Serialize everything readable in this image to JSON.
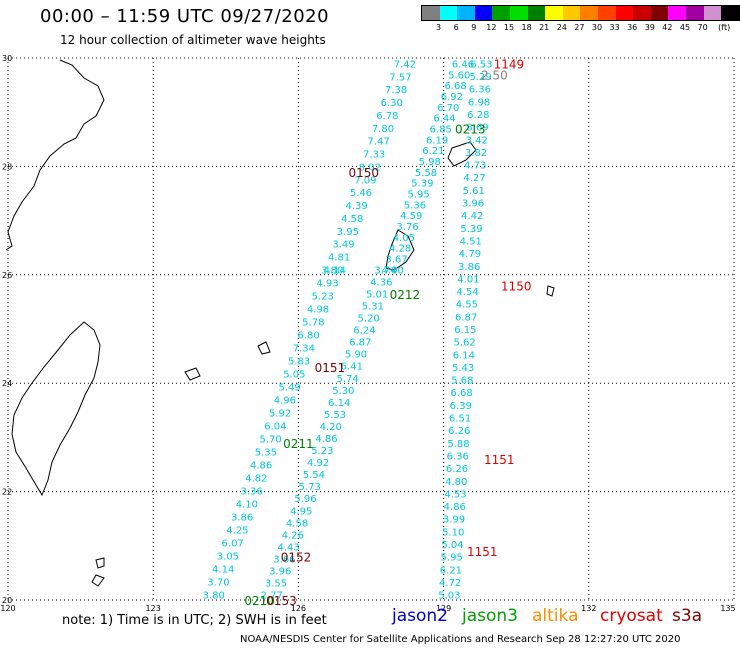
{
  "title": "00:00 – 11:59 UTC 09/27/2020",
  "subtitle": "12 hour collection of altimeter wave heights",
  "color_scale": {
    "colors": [
      "#808080",
      "#00ffff",
      "#00b4ff",
      "#0000ff",
      "#00a000",
      "#00e000",
      "#008000",
      "#ffff00",
      "#ffc800",
      "#ff8000",
      "#ff4000",
      "#ff0000",
      "#c80000",
      "#800000",
      "#ff00ff",
      "#a000a0",
      "#d090d0",
      "#000000"
    ],
    "labels": [
      "3",
      "6",
      "9",
      "12",
      "15",
      "18",
      "21",
      "24",
      "27",
      "30",
      "33",
      "36",
      "39",
      "42",
      "45",
      "70",
      "(ft)"
    ]
  },
  "chart_data": {
    "type": "scatter",
    "xlim": [
      120,
      135
    ],
    "ylim": [
      20,
      30
    ],
    "x_ticks": [
      "120",
      "123",
      "126",
      "129",
      "132",
      "135"
    ],
    "y_ticks": [
      "20",
      "22",
      "24",
      "26",
      "28",
      "30"
    ],
    "grid": true,
    "tracks": [
      {
        "x0": 129.78,
        "y0": 29.9,
        "x1": 129.12,
        "y1": 20.1,
        "values": [
          "6.53",
          "5.29",
          "6.36",
          "6.98",
          "6.28",
          "8.69",
          "3.42",
          "3.82",
          "4.73",
          "4.27",
          "5.61",
          "3.96",
          "4.42",
          "5.39",
          "4.51",
          "4.79",
          "3.86",
          "4.01",
          "4.54",
          "4.55",
          "6.87",
          "6.15",
          "5.62",
          "6.14",
          "5.43",
          "5.68",
          "6.68",
          "6.39",
          "6.51",
          "6.26",
          "5.88",
          "6.36",
          "6.26",
          "4.80",
          "4.53",
          "4.86",
          "3.99",
          "5.10",
          "5.04",
          "5.95",
          "6.21",
          "4.72",
          "5.03"
        ]
      },
      {
        "x0": 129.4,
        "y0": 29.9,
        "x1": 127.95,
        "y1": 26.1,
        "values": [
          "6.46",
          "5.60",
          "6.68",
          "6.92",
          "6.70",
          "6.44",
          "6.85",
          "6.19",
          "6.21",
          "5.98",
          "5.58",
          "5.39",
          "5.95",
          "5.36",
          "4.59",
          "3.76",
          "4.05",
          "4.28",
          "3.67",
          "4.00"
        ]
      },
      {
        "x0": 128.2,
        "y0": 29.9,
        "x1": 126.75,
        "y1": 26.1,
        "values": [
          "7.42",
          "7.57",
          "7.38",
          "6.30",
          "6.78",
          "7.80",
          "7.47",
          "7.33",
          "8.02",
          "7.09",
          "5.46",
          "4.39",
          "4.58",
          "3.95",
          "3.49",
          "4.81",
          "4.14"
        ]
      },
      {
        "x0": 127.8,
        "y0": 26.1,
        "x1": 125.45,
        "y1": 20.1,
        "values": [
          "3.74",
          "4.36",
          "5.01",
          "5.31",
          "5.20",
          "6.24",
          "6.87",
          "5.90",
          "6.41",
          "5.74",
          "5.30",
          "6.14",
          "5.53",
          "4.20",
          "4.86",
          "5.23",
          "4.92",
          "5.54",
          "5.73",
          "5.96",
          "4.95",
          "4.58",
          "4.26",
          "4.43",
          "3.66",
          "3.96",
          "3.55",
          "2.77"
        ]
      },
      {
        "x0": 126.7,
        "y0": 26.1,
        "x1": 124.25,
        "y1": 20.1,
        "values": [
          "3.80",
          "4.93",
          "5.23",
          "4.98",
          "5.78",
          "6.80",
          "7.34",
          "5.83",
          "5.05",
          "5.49",
          "4.96",
          "5.92",
          "6.04",
          "5.70",
          "5.35",
          "4.86",
          "4.82",
          "3.36",
          "4.10",
          "3.86",
          "4.25",
          "6.07",
          "3.05",
          "4.14",
          "3.70",
          "3.80"
        ]
      }
    ],
    "labels": [
      {
        "text": "1149",
        "x": 130.35,
        "y": 29.9,
        "color": "#e00000"
      },
      {
        "text": "2.50",
        "x": 130.05,
        "y": 29.7,
        "color": "#808080"
      },
      {
        "text": "0213",
        "x": 129.55,
        "y": 28.7,
        "color": "#008000"
      },
      {
        "text": "0150",
        "x": 127.35,
        "y": 27.9,
        "color": "#800000"
      },
      {
        "text": "1150",
        "x": 130.5,
        "y": 25.8,
        "color": "#e00000"
      },
      {
        "text": "0212",
        "x": 128.2,
        "y": 25.65,
        "color": "#008000"
      },
      {
        "text": "0151",
        "x": 126.65,
        "y": 24.3,
        "color": "#800000"
      },
      {
        "text": "0211",
        "x": 126.0,
        "y": 22.9,
        "color": "#008000"
      },
      {
        "text": "1151",
        "x": 130.15,
        "y": 22.6,
        "color": "#e00000"
      },
      {
        "text": "1151",
        "x": 129.8,
        "y": 20.9,
        "color": "#e00000"
      },
      {
        "text": "0152",
        "x": 125.95,
        "y": 20.8,
        "color": "#800000"
      },
      {
        "text": "0210",
        "x": 125.2,
        "y": 20.0,
        "color": "#008000"
      },
      {
        "text": "0153",
        "x": 125.65,
        "y": 20.0,
        "color": "#800000"
      }
    ]
  },
  "note": "note:  1) Time is in UTC;  2) SWH is in feet",
  "legend": [
    {
      "name": "jason2",
      "color": "#0000cc"
    },
    {
      "name": "jason3",
      "color": "#00a000"
    },
    {
      "name": "altika",
      "color": "#ff8c00"
    },
    {
      "name": "cryosat",
      "color": "#e00000"
    },
    {
      "name": "s3a",
      "color": "#800000"
    }
  ],
  "credit": "NOAA/NESDIS Center for Satellite Applications and Research    Sep 28 12:27:20 UTC 2020"
}
